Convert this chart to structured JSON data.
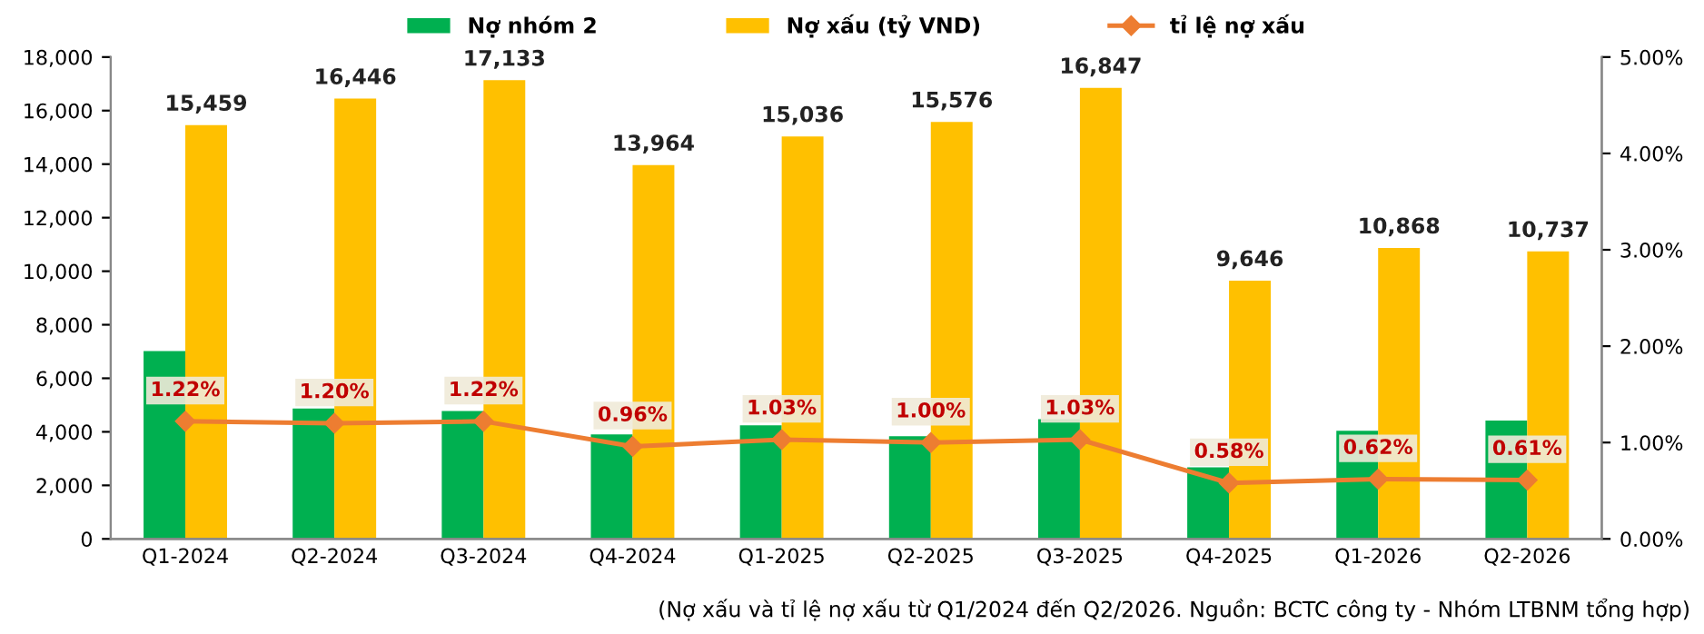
{
  "chart_data": {
    "type": "bar",
    "categories": [
      "Q1-2024",
      "Q2-2024",
      "Q3-2024",
      "Q4-2024",
      "Q1-2025",
      "Q2-2025",
      "Q3-2025",
      "Q4-2025",
      "Q1-2026",
      "Q2-2026"
    ],
    "series": [
      {
        "name": "Nợ nhóm 2",
        "color": "#00b050",
        "values": [
          7020,
          4870,
          4780,
          3900,
          4240,
          3840,
          4470,
          2670,
          4040,
          4420
        ]
      },
      {
        "name": "Nợ xấu (tỷ VND)",
        "color": "#ffc000",
        "values": [
          15459,
          16446,
          17133,
          13964,
          15036,
          15576,
          16847,
          9646,
          10868,
          10737
        ],
        "value_labels": [
          "15,459",
          "16,446",
          "17,133",
          "13,964",
          "15,036",
          "15,576",
          "16,847",
          "9,646",
          "10,868",
          "10,737"
        ]
      },
      {
        "name": "tỉ lệ nợ xấu",
        "type": "line",
        "axis": "y2",
        "color": "#ed7d31",
        "marker": "diamond",
        "values": [
          1.22,
          1.2,
          1.22,
          0.96,
          1.03,
          1.0,
          1.03,
          0.58,
          0.62,
          0.61
        ],
        "value_labels": [
          "1.22%",
          "1.20%",
          "1.22%",
          "0.96%",
          "1.03%",
          "1.00%",
          "1.03%",
          "0.58%",
          "0.62%",
          "0.61%"
        ]
      }
    ],
    "ylim": [
      0,
      18000
    ],
    "yticks": [
      0,
      {
        "value": 2000,
        "label": "2,000"
      },
      {
        "value": 4000,
        "label": "4,000"
      },
      {
        "value": 6000,
        "label": "6,000"
      },
      {
        "value": 8000,
        "label": "8,000"
      },
      {
        "value": 10000,
        "label": "10,000"
      },
      {
        "value": 12000,
        "label": "12,000"
      },
      {
        "value": 14000,
        "label": "14,000"
      },
      {
        "value": 16000,
        "label": "16,000"
      },
      {
        "value": 18000,
        "label": "18,000"
      }
    ],
    "y2lim": [
      0,
      5
    ],
    "y2ticks": [
      {
        "value": 0,
        "label": "0.00%"
      },
      {
        "value": 1,
        "label": "1.00%"
      },
      {
        "value": 2,
        "label": "2.00%"
      },
      {
        "value": 3,
        "label": "3.00%"
      },
      {
        "value": 4,
        "label": "4.00%"
      },
      {
        "value": 5,
        "label": "5.00%"
      }
    ],
    "legend": "top",
    "annotations": [
      "(Nợ xấu và tỉ lệ nợ xấu từ Q1/2024 đến Q2/2026. Nguồn: BCTC công ty - Nhóm LTBNM tổng hợp)"
    ]
  }
}
